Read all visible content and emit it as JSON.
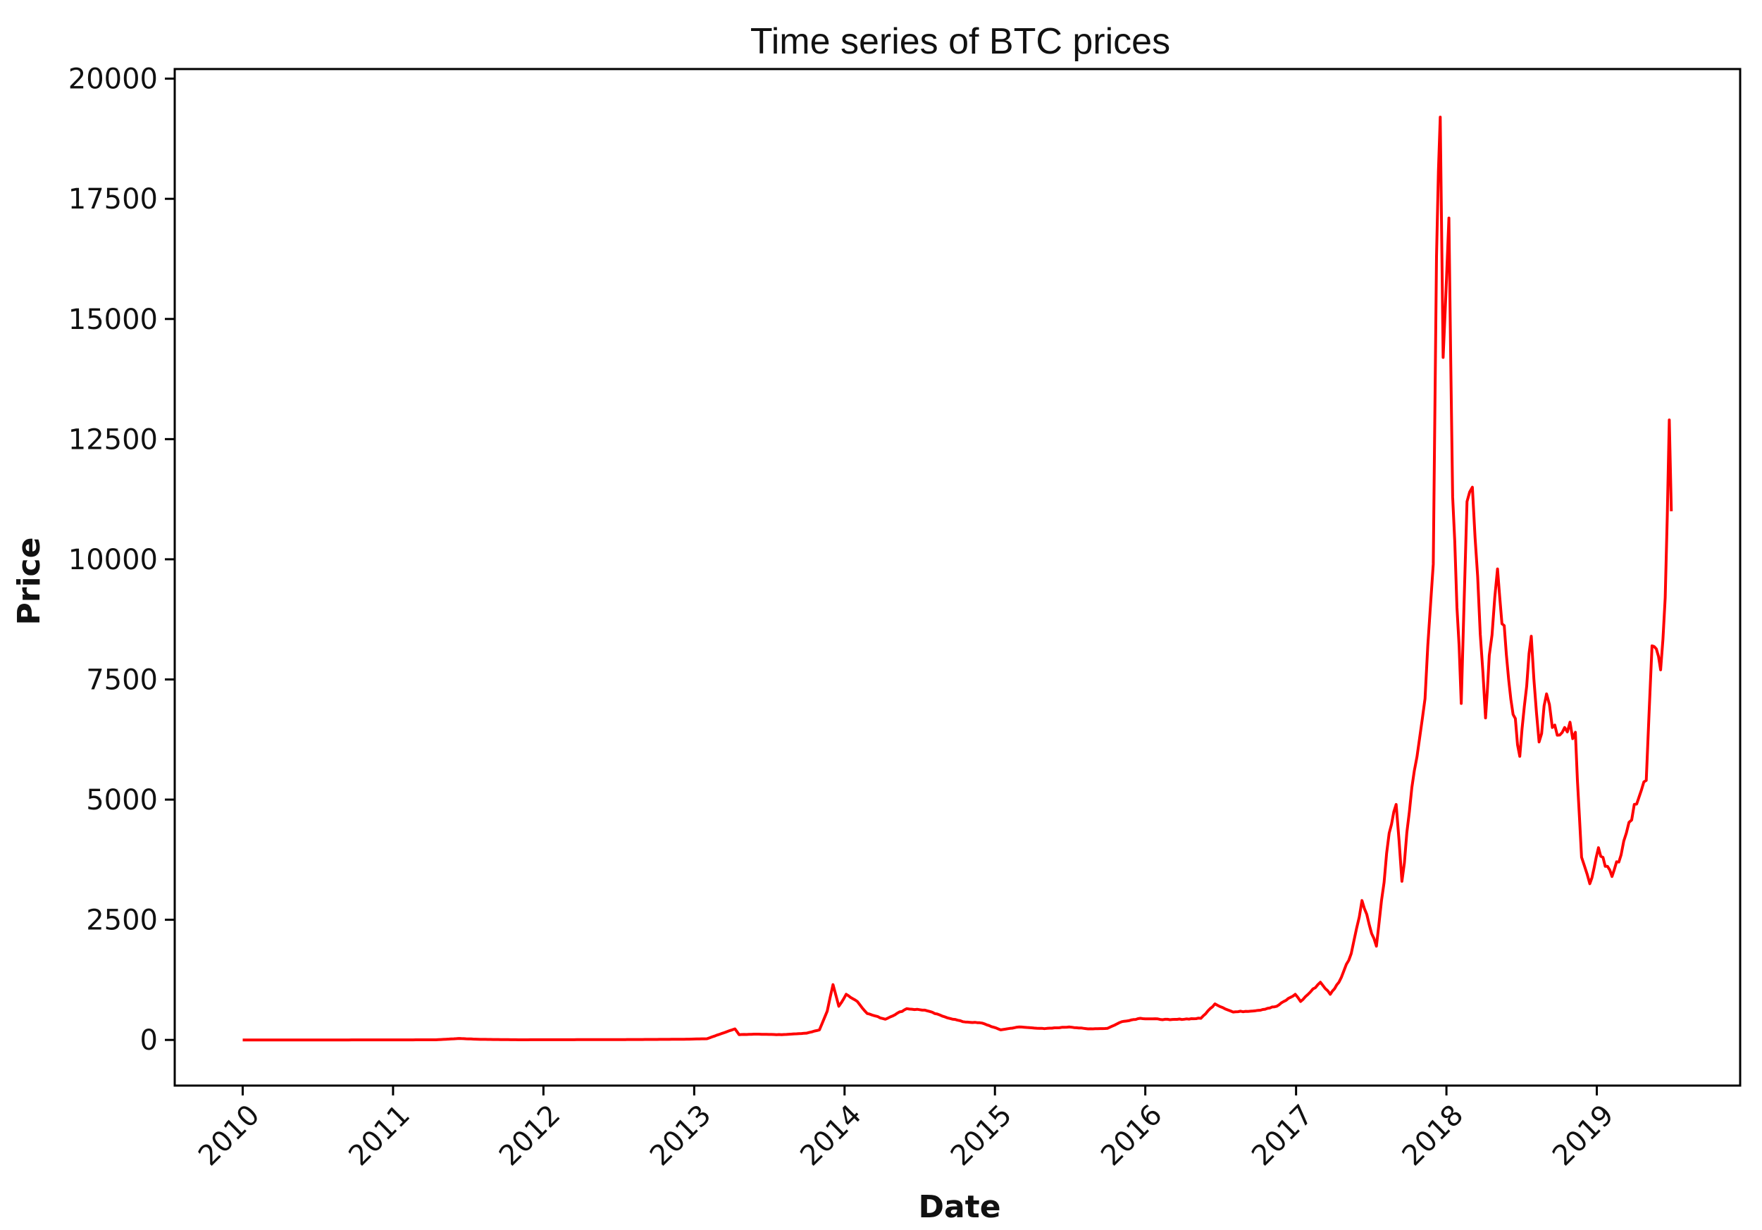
{
  "chart_data": {
    "type": "line",
    "title": "Time series of BTC prices",
    "xlabel": "Date",
    "ylabel": "Price",
    "x_tick_labels": [
      "2010",
      "2011",
      "2012",
      "2013",
      "2014",
      "2015",
      "2016",
      "2017",
      "2018",
      "2019"
    ],
    "y_tick_labels": [
      "0",
      "2500",
      "5000",
      "7500",
      "10000",
      "12500",
      "15000",
      "17500",
      "20000"
    ],
    "xlim": [
      "2009-07-20",
      "2019-12-15"
    ],
    "ylim": [
      -950,
      20200
    ],
    "grid": false,
    "legend": "none",
    "series": [
      {
        "color": "#ff0000",
        "points": [
          [
            "2010-01-01",
            0
          ],
          [
            "2010-06-01",
            0
          ],
          [
            "2011-01-01",
            1
          ],
          [
            "2011-04-15",
            3
          ],
          [
            "2011-06-10",
            30
          ],
          [
            "2011-08-01",
            12
          ],
          [
            "2011-11-01",
            3
          ],
          [
            "2012-06-01",
            6
          ],
          [
            "2012-12-01",
            13
          ],
          [
            "2013-02-01",
            25
          ],
          [
            "2013-04-10",
            230
          ],
          [
            "2013-04-20",
            110
          ],
          [
            "2013-06-01",
            120
          ],
          [
            "2013-08-01",
            110
          ],
          [
            "2013-10-01",
            140
          ],
          [
            "2013-11-01",
            210
          ],
          [
            "2013-11-20",
            600
          ],
          [
            "2013-12-04",
            1150
          ],
          [
            "2013-12-18",
            700
          ],
          [
            "2014-01-05",
            950
          ],
          [
            "2014-02-01",
            800
          ],
          [
            "2014-02-25",
            550
          ],
          [
            "2014-04-10",
            430
          ],
          [
            "2014-06-01",
            650
          ],
          [
            "2014-07-15",
            620
          ],
          [
            "2014-09-01",
            480
          ],
          [
            "2014-10-15",
            380
          ],
          [
            "2014-12-01",
            350
          ],
          [
            "2015-01-15",
            210
          ],
          [
            "2015-03-01",
            270
          ],
          [
            "2015-05-01",
            235
          ],
          [
            "2015-07-01",
            270
          ],
          [
            "2015-08-15",
            230
          ],
          [
            "2015-10-01",
            240
          ],
          [
            "2015-11-05",
            380
          ],
          [
            "2015-12-20",
            450
          ],
          [
            "2016-03-01",
            420
          ],
          [
            "2016-05-15",
            450
          ],
          [
            "2016-06-18",
            750
          ],
          [
            "2016-08-01",
            580
          ],
          [
            "2016-10-01",
            615
          ],
          [
            "2016-11-15",
            700
          ],
          [
            "2016-12-30",
            950
          ],
          [
            "2017-01-12",
            800
          ],
          [
            "2017-03-01",
            1200
          ],
          [
            "2017-03-25",
            950
          ],
          [
            "2017-04-15",
            1200
          ],
          [
            "2017-05-15",
            1800
          ],
          [
            "2017-06-10",
            2900
          ],
          [
            "2017-07-15",
            1950
          ],
          [
            "2017-08-15",
            4300
          ],
          [
            "2017-09-01",
            4900
          ],
          [
            "2017-09-15",
            3300
          ],
          [
            "2017-10-15",
            5600
          ],
          [
            "2017-11-10",
            7100
          ],
          [
            "2017-11-30",
            9900
          ],
          [
            "2017-12-08",
            16300
          ],
          [
            "2017-12-17",
            19200
          ],
          [
            "2017-12-24",
            14200
          ],
          [
            "2018-01-07",
            17100
          ],
          [
            "2018-01-16",
            11300
          ],
          [
            "2018-02-06",
            7000
          ],
          [
            "2018-02-20",
            11200
          ],
          [
            "2018-03-05",
            11500
          ],
          [
            "2018-04-06",
            6700
          ],
          [
            "2018-04-15",
            8000
          ],
          [
            "2018-05-05",
            9800
          ],
          [
            "2018-06-01",
            7500
          ],
          [
            "2018-06-28",
            5900
          ],
          [
            "2018-07-26",
            8400
          ],
          [
            "2018-08-14",
            6200
          ],
          [
            "2018-09-01",
            7200
          ],
          [
            "2018-09-15",
            6500
          ],
          [
            "2018-10-15",
            6500
          ],
          [
            "2018-11-10",
            6400
          ],
          [
            "2018-11-25",
            3800
          ],
          [
            "2018-12-15",
            3250
          ],
          [
            "2019-01-05",
            4000
          ],
          [
            "2019-02-07",
            3400
          ],
          [
            "2019-03-01",
            3850
          ],
          [
            "2019-04-02",
            4900
          ],
          [
            "2019-05-01",
            5400
          ],
          [
            "2019-05-15",
            8200
          ],
          [
            "2019-06-05",
            7700
          ],
          [
            "2019-06-16",
            9200
          ],
          [
            "2019-06-26",
            12900
          ],
          [
            "2019-07-01",
            11000
          ]
        ]
      }
    ]
  }
}
